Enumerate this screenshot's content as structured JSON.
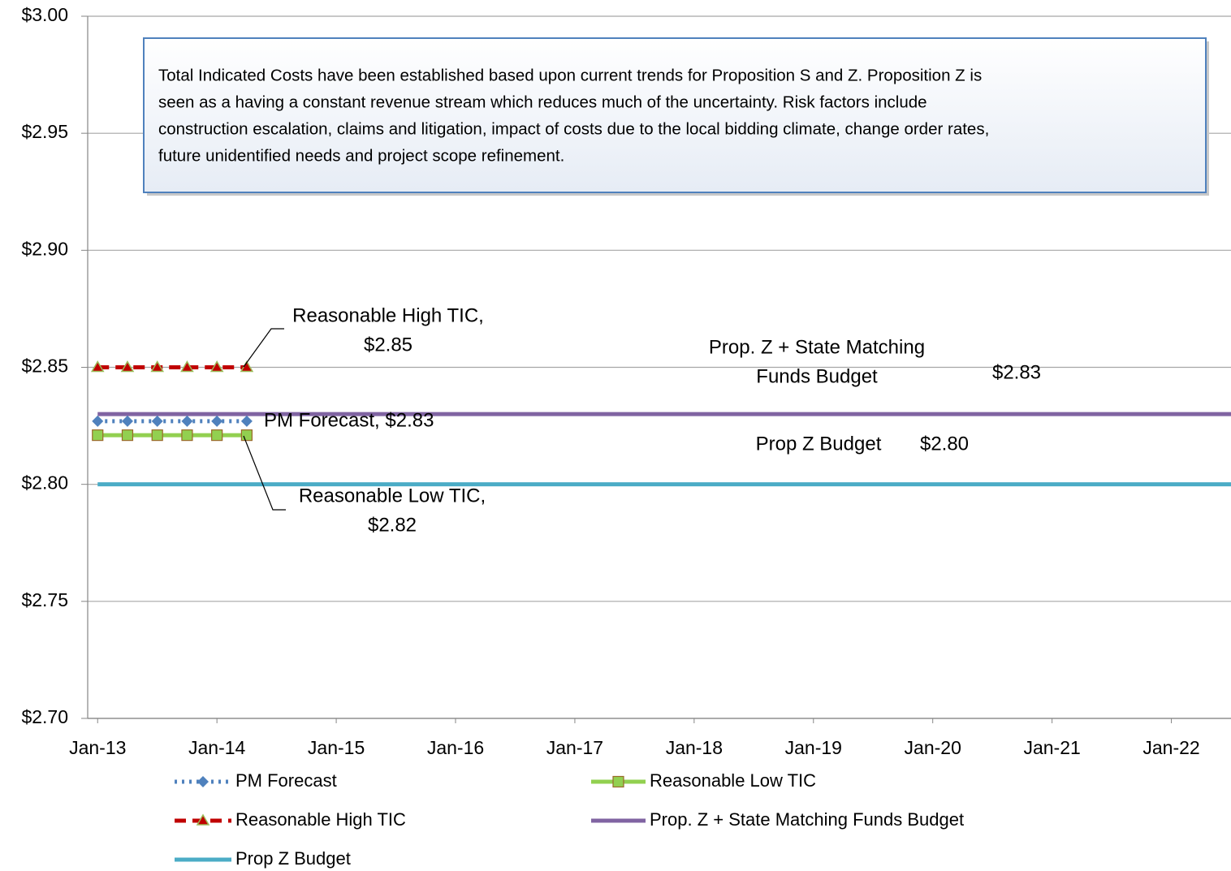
{
  "chart_data": {
    "type": "line",
    "ylim": [
      2.7,
      3.0
    ],
    "yticks": [
      {
        "value": 2.7,
        "label": "$2.70"
      },
      {
        "value": 2.75,
        "label": "$2.75"
      },
      {
        "value": 2.8,
        "label": "$2.80"
      },
      {
        "value": 2.85,
        "label": "$2.85"
      },
      {
        "value": 2.9,
        "label": "$2.90"
      },
      {
        "value": 2.95,
        "label": "$2.95"
      },
      {
        "value": 3.0,
        "label": "$3.00"
      }
    ],
    "xlim": [
      "2012-12",
      "2022-07"
    ],
    "xticks": [
      {
        "value": "2013-01",
        "label": "Jan-13"
      },
      {
        "value": "2014-01",
        "label": "Jan-14"
      },
      {
        "value": "2015-01",
        "label": "Jan-15"
      },
      {
        "value": "2016-01",
        "label": "Jan-16"
      },
      {
        "value": "2017-01",
        "label": "Jan-17"
      },
      {
        "value": "2018-01",
        "label": "Jan-18"
      },
      {
        "value": "2019-01",
        "label": "Jan-19"
      },
      {
        "value": "2020-01",
        "label": "Jan-20"
      },
      {
        "value": "2021-01",
        "label": "Jan-21"
      },
      {
        "value": "2022-01",
        "label": "Jan-22"
      }
    ],
    "grid": true,
    "series": [
      {
        "name": "PM Forecast",
        "color": "#4f81bd",
        "dash": "dotted",
        "marker": "diamond",
        "x": [
          "2013-01",
          "2013-04",
          "2013-07",
          "2013-10",
          "2014-01",
          "2014-04"
        ],
        "values": [
          2.827,
          2.827,
          2.827,
          2.827,
          2.827,
          2.827
        ]
      },
      {
        "name": "Reasonable Low TIC",
        "color": "#92d050",
        "dash": "solid",
        "marker": "square",
        "x": [
          "2013-01",
          "2013-04",
          "2013-07",
          "2013-10",
          "2014-01",
          "2014-04"
        ],
        "values": [
          2.821,
          2.821,
          2.821,
          2.821,
          2.821,
          2.821
        ]
      },
      {
        "name": "Reasonable High TIC",
        "color": "#c00000",
        "dash": "dashed",
        "marker": "triangle",
        "x": [
          "2013-01",
          "2013-04",
          "2013-07",
          "2013-10",
          "2014-01",
          "2014-04"
        ],
        "values": [
          2.85,
          2.85,
          2.85,
          2.85,
          2.85,
          2.85
        ]
      },
      {
        "name": "Prop. Z + State Matching Funds Budget",
        "color": "#8064a2",
        "dash": "solid",
        "marker": "none",
        "x": [
          "2013-01",
          "2022-07"
        ],
        "values": [
          2.83,
          2.83
        ]
      },
      {
        "name": "Prop Z Budget",
        "color": "#4bacc6",
        "dash": "solid",
        "marker": "none",
        "x": [
          "2013-01",
          "2022-07"
        ],
        "values": [
          2.8,
          2.8
        ]
      }
    ],
    "annotations": [
      [
        "Reasonable High TIC,",
        "$2.85"
      ],
      [
        "PM Forecast,  $2.83"
      ],
      [
        "Reasonable Low TIC,",
        "$2.82"
      ],
      [
        "Prop. Z + State Matching",
        "Funds Budget"
      ],
      [
        "$2.83"
      ],
      [
        "Prop Z Budget"
      ],
      [
        "$2.80"
      ]
    ],
    "note": [
      "Total Indicated Costs have been established based upon current trends for Proposition S and Z.  Proposition Z is",
      "seen as a having a constant revenue stream which reduces much of the uncertainty.  Risk factors include",
      "construction escalation, claims and litigation, impact of costs due to the  local bidding climate, change order rates,",
      "future unidentified needs and project scope refinement."
    ]
  }
}
